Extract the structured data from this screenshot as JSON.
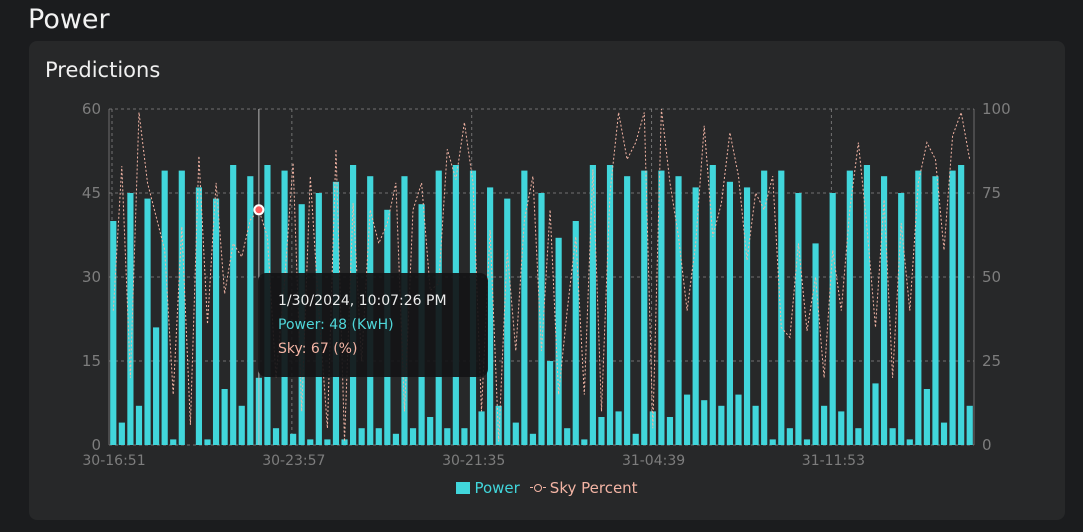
{
  "page": {
    "title": "Power"
  },
  "card": {
    "title": "Predictions"
  },
  "tooltip": {
    "time": "1/30/2024, 10:07:26 PM",
    "power": "Power: 48 (KwH)",
    "sky": "Sky: 67 (%)"
  },
  "colors": {
    "power": "#41d6db",
    "sky": "#f3b4a4",
    "grid": "#8a8a8a",
    "axis_text": "#7d7d7d"
  },
  "chart_data": {
    "type": "bar",
    "title": "",
    "grid": true,
    "legend_position": "bottom",
    "x_tick_labels": [
      "30-16:51",
      "30-23:57",
      "30-21:35",
      "31-04:39",
      "31-11:53"
    ],
    "y_left": {
      "range": [
        0,
        60
      ],
      "ticks": [
        0,
        15,
        30,
        45,
        60
      ]
    },
    "y_right": {
      "range": [
        0,
        100
      ],
      "ticks": [
        0,
        25,
        50,
        75,
        100
      ]
    },
    "series": [
      {
        "name": "Power",
        "kind": "bar",
        "values": [
          40,
          4,
          45,
          7,
          44,
          21,
          49,
          1,
          49,
          0,
          46,
          1,
          44,
          10,
          50,
          7,
          48,
          12,
          50,
          3,
          49,
          2,
          43,
          1,
          45,
          1,
          47,
          1,
          50,
          3,
          48,
          3,
          42,
          2,
          48,
          3,
          43,
          5,
          49,
          3,
          50,
          3,
          49,
          6,
          46,
          7,
          44,
          4,
          49,
          2,
          45,
          15,
          37,
          3,
          40,
          1,
          50,
          5,
          50,
          6,
          48,
          2,
          49,
          6,
          49,
          5,
          48,
          9,
          46,
          8,
          50,
          7,
          47,
          9,
          46,
          7,
          49,
          1,
          49,
          3,
          45,
          1,
          36,
          7,
          45,
          6,
          49,
          3,
          50,
          11,
          48,
          3,
          45,
          1,
          49,
          10,
          48,
          4,
          49,
          50,
          7
        ]
      },
      {
        "name": "Sky Percent",
        "kind": "line",
        "values": [
          40,
          83,
          20,
          99,
          78,
          68,
          58,
          15,
          65,
          6,
          86,
          36,
          78,
          45,
          60,
          56,
          67,
          70,
          62,
          20,
          49,
          84,
          10,
          80,
          40,
          5,
          88,
          1,
          72,
          25,
          70,
          60,
          66,
          78,
          10,
          70,
          78,
          46,
          48,
          88,
          79,
          96,
          78,
          10,
          64,
          1,
          58,
          28,
          67,
          80,
          28,
          70,
          15,
          40,
          62,
          15,
          82,
          10,
          75,
          99,
          85,
          90,
          99,
          5,
          100,
          78,
          62,
          40,
          60,
          95,
          62,
          72,
          93,
          80,
          55,
          75,
          70,
          80,
          35,
          32,
          60,
          34,
          50,
          20,
          58,
          40,
          70,
          90,
          65,
          35,
          73,
          20,
          66,
          40,
          78,
          90,
          85,
          58,
          92,
          99,
          85
        ]
      }
    ],
    "active_index": 17
  },
  "legend": {
    "power": "Power",
    "sky": "Sky Percent"
  }
}
